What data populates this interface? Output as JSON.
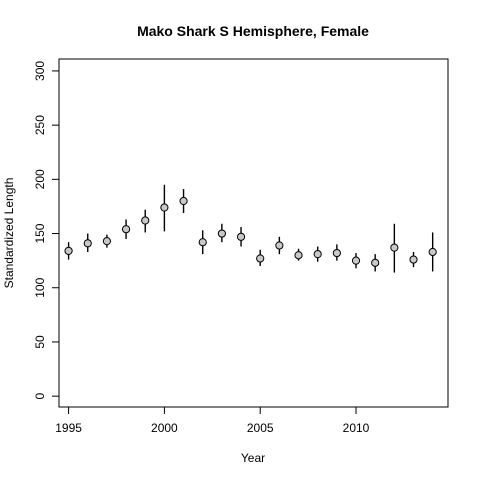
{
  "chart_data": {
    "type": "scatter",
    "title": "Mako Shark S Hemisphere,  Female",
    "xlabel": "Year",
    "ylabel": "Standardized Length",
    "xlim": [
      1994.5,
      2014.8
    ],
    "ylim": [
      -10,
      311
    ],
    "xticks": [
      1995,
      2000,
      2005,
      2010
    ],
    "yticks": [
      0,
      50,
      100,
      150,
      200,
      250,
      300
    ],
    "grid": false,
    "points": [
      {
        "x": 1995,
        "y": 134,
        "lo": 126,
        "hi": 142
      },
      {
        "x": 1996,
        "y": 141,
        "lo": 133,
        "hi": 150
      },
      {
        "x": 1997,
        "y": 143,
        "lo": 137,
        "hi": 149
      },
      {
        "x": 1998,
        "y": 154,
        "lo": 145,
        "hi": 163
      },
      {
        "x": 1999,
        "y": 162,
        "lo": 151,
        "hi": 172
      },
      {
        "x": 2000,
        "y": 174,
        "lo": 152,
        "hi": 195
      },
      {
        "x": 2001,
        "y": 180,
        "lo": 169,
        "hi": 191
      },
      {
        "x": 2002,
        "y": 142,
        "lo": 131,
        "hi": 153
      },
      {
        "x": 2003,
        "y": 150,
        "lo": 142,
        "hi": 159
      },
      {
        "x": 2004,
        "y": 147,
        "lo": 138,
        "hi": 156
      },
      {
        "x": 2005,
        "y": 127,
        "lo": 120,
        "hi": 135
      },
      {
        "x": 2006,
        "y": 139,
        "lo": 131,
        "hi": 147
      },
      {
        "x": 2007,
        "y": 130,
        "lo": 125,
        "hi": 136
      },
      {
        "x": 2008,
        "y": 131,
        "lo": 124,
        "hi": 138
      },
      {
        "x": 2009,
        "y": 132,
        "lo": 125,
        "hi": 140
      },
      {
        "x": 2010,
        "y": 125,
        "lo": 118,
        "hi": 132
      },
      {
        "x": 2011,
        "y": 123,
        "lo": 115,
        "hi": 131
      },
      {
        "x": 2012,
        "y": 137,
        "lo": 114,
        "hi": 159
      },
      {
        "x": 2013,
        "y": 126,
        "lo": 119,
        "hi": 133
      },
      {
        "x": 2014,
        "y": 133,
        "lo": 115,
        "hi": 151
      }
    ],
    "colors": {
      "point_fill": "#c8c8c8",
      "stroke": "#000000"
    }
  }
}
